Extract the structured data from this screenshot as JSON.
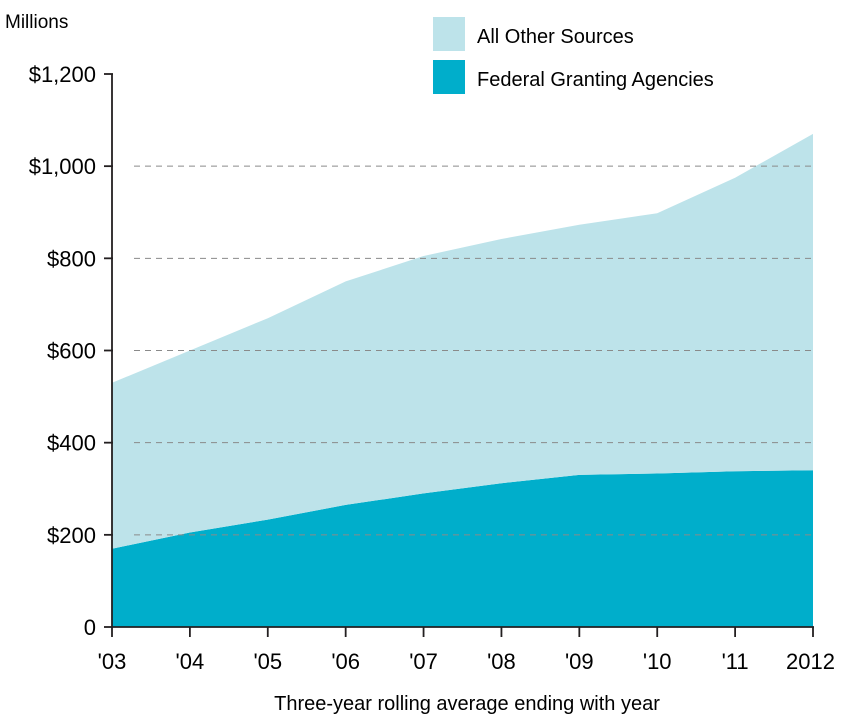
{
  "chart_data": {
    "type": "area",
    "stacked": true,
    "unit_label": "Millions",
    "xlabel": "Three-year rolling average ending with year",
    "ylabel": "",
    "x": [
      "'03",
      "'04",
      "'05",
      "'06",
      "'07",
      "'08",
      "'09",
      "'10",
      "'11",
      "2012"
    ],
    "ylim": [
      0,
      1200
    ],
    "y_ticks": [
      {
        "value": 0,
        "label": "0"
      },
      {
        "value": 200,
        "label": "$200"
      },
      {
        "value": 400,
        "label": "$400"
      },
      {
        "value": 600,
        "label": "$600"
      },
      {
        "value": 800,
        "label": "$800"
      },
      {
        "value": 1000,
        "label": "$1,000"
      },
      {
        "value": 1200,
        "label": "$1,200"
      }
    ],
    "grid": "dashed horizontal at $200 intervals",
    "legend_position": "top-right",
    "series": [
      {
        "name": "Federal Granting Agencies",
        "color": "#00aecb",
        "values": [
          170,
          205,
          233,
          265,
          290,
          312,
          330,
          333,
          338,
          340
        ]
      },
      {
        "name": "All Other Sources",
        "color": "#bde3ea",
        "values": [
          360,
          395,
          437,
          485,
          515,
          530,
          543,
          565,
          637,
          730
        ]
      }
    ],
    "totals": [
      530,
      600,
      670,
      750,
      805,
      842,
      873,
      898,
      975,
      1070
    ]
  },
  "legend": [
    {
      "label": "All Other Sources",
      "color": "#bde3ea"
    },
    {
      "label": "Federal Granting Agencies",
      "color": "#00aecb"
    }
  ]
}
